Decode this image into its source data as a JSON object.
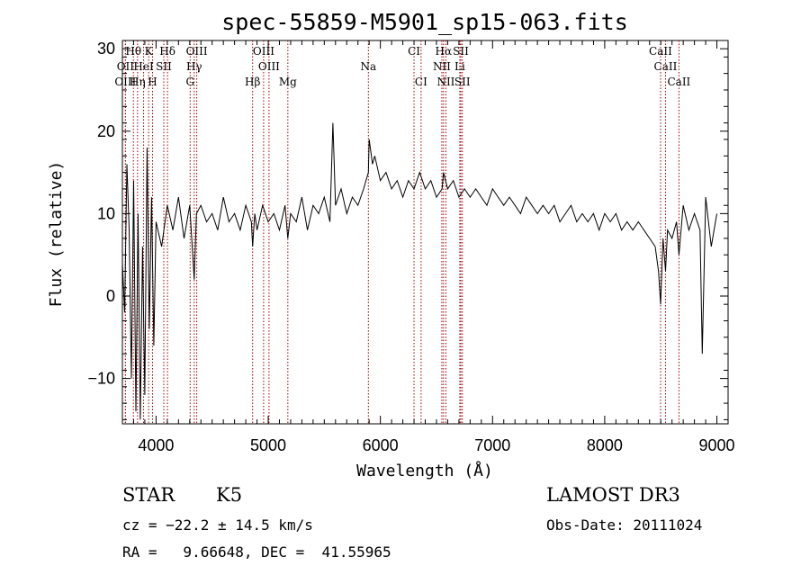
{
  "chart_data": {
    "type": "line",
    "title": "spec-55859-M5901_sp15-063.fits",
    "xlabel": "Wavelength (Å)",
    "ylabel": "Flux (relative)",
    "xlim": [
      3700,
      9100
    ],
    "ylim": [
      -15.5,
      31
    ],
    "xticks": [
      4000,
      5000,
      6000,
      7000,
      8000,
      9000
    ],
    "yticks": [
      -10,
      0,
      10,
      20,
      30
    ],
    "series": [
      {
        "name": "spectrum",
        "x": [
          3700,
          3720,
          3740,
          3760,
          3780,
          3800,
          3820,
          3840,
          3860,
          3880,
          3900,
          3920,
          3940,
          3960,
          3980,
          4000,
          4050,
          4100,
          4150,
          4200,
          4250,
          4300,
          4340,
          4360,
          4400,
          4450,
          4500,
          4550,
          4600,
          4650,
          4700,
          4750,
          4800,
          4850,
          4861,
          4880,
          4900,
          4950,
          5000,
          5050,
          5100,
          5150,
          5175,
          5200,
          5250,
          5300,
          5350,
          5400,
          5450,
          5500,
          5550,
          5577,
          5600,
          5650,
          5700,
          5750,
          5800,
          5850,
          5893,
          5900,
          5930,
          5950,
          6000,
          6050,
          6100,
          6150,
          6200,
          6250,
          6300,
          6350,
          6400,
          6450,
          6500,
          6550,
          6563,
          6600,
          6650,
          6700,
          6750,
          6800,
          6850,
          6900,
          6950,
          7000,
          7050,
          7100,
          7150,
          7200,
          7250,
          7300,
          7350,
          7400,
          7450,
          7500,
          7550,
          7600,
          7650,
          7700,
          7750,
          7800,
          7850,
          7900,
          7950,
          8000,
          8050,
          8100,
          8150,
          8200,
          8250,
          8300,
          8350,
          8400,
          8450,
          8480,
          8498,
          8520,
          8542,
          8560,
          8600,
          8640,
          8662,
          8700,
          8750,
          8800,
          8850,
          8870,
          8900,
          8950,
          9000
        ],
        "values": [
          4,
          -2,
          16,
          8,
          -10,
          14,
          -14,
          10,
          -15,
          6,
          -12,
          18,
          -4,
          12,
          -6,
          9,
          6,
          11,
          8,
          12,
          7,
          11,
          2,
          10,
          11,
          9,
          10,
          8,
          12,
          9,
          10,
          8,
          11,
          9,
          6,
          10,
          8,
          11,
          9,
          10,
          8,
          11,
          7,
          10,
          9,
          12,
          8,
          11,
          10,
          12,
          9,
          21,
          11,
          13,
          10,
          12,
          11,
          13,
          15,
          19,
          16,
          17,
          14,
          15,
          13,
          14,
          12,
          14,
          13,
          15,
          13,
          14,
          12,
          13,
          15,
          13,
          14,
          12,
          13,
          12,
          13,
          12,
          11,
          13,
          12,
          11,
          12,
          11,
          10,
          12,
          11,
          10,
          11,
          10,
          11,
          9,
          10,
          11,
          9,
          10,
          9,
          10,
          8,
          10,
          9,
          10,
          8,
          9,
          8,
          9,
          8,
          7,
          6,
          3,
          -1,
          7,
          3,
          8,
          7,
          9,
          5,
          11,
          8,
          10,
          8,
          -7,
          12,
          6,
          10
        ]
      }
    ],
    "spectral_lines": [
      {
        "label": "Hθ",
        "wl": 3798,
        "row": 0
      },
      {
        "label": "K",
        "wl": 3934,
        "row": 0
      },
      {
        "label": "Hδ",
        "wl": 4102,
        "row": 0
      },
      {
        "label": "OIII",
        "wl": 4363,
        "row": 0
      },
      {
        "label": "OIII",
        "wl": 4959,
        "row": 0
      },
      {
        "label": "CI",
        "wl": 6300,
        "row": 0
      },
      {
        "label": "Hα",
        "wl": 6563,
        "row": 0
      },
      {
        "label": "SII",
        "wl": 6717,
        "row": 0
      },
      {
        "label": "CaII",
        "wl": 8498,
        "row": 0
      },
      {
        "label": "OII",
        "wl": 3727,
        "row": 1
      },
      {
        "label": "HeI",
        "wl": 3889,
        "row": 1
      },
      {
        "label": "SII",
        "wl": 4069,
        "row": 1
      },
      {
        "label": "Hγ",
        "wl": 4340,
        "row": 1
      },
      {
        "label": "OIII",
        "wl": 5007,
        "row": 1
      },
      {
        "label": "Na",
        "wl": 5893,
        "row": 1
      },
      {
        "label": "NII",
        "wl": 6548,
        "row": 1
      },
      {
        "label": "Li",
        "wl": 6708,
        "row": 1
      },
      {
        "label": "CaII",
        "wl": 8542,
        "row": 1
      },
      {
        "label": "OIII",
        "wl": 3727,
        "row": 2
      },
      {
        "label": "Hη",
        "wl": 3835,
        "row": 2
      },
      {
        "label": "H",
        "wl": 3969,
        "row": 2
      },
      {
        "label": "G",
        "wl": 4304,
        "row": 2
      },
      {
        "label": "Hβ",
        "wl": 4861,
        "row": 2
      },
      {
        "label": "Mg",
        "wl": 5175,
        "row": 2
      },
      {
        "label": "CI",
        "wl": 6363,
        "row": 2
      },
      {
        "label": "NII",
        "wl": 6584,
        "row": 2
      },
      {
        "label": "SII",
        "wl": 6731,
        "row": 2
      },
      {
        "label": "CaII",
        "wl": 8662,
        "row": 2
      }
    ],
    "line_color": "#a00000"
  },
  "info": {
    "object_class": "STAR",
    "subclass": "K5",
    "survey": "LAMOST DR3",
    "redshift": "cz = −22.2 ± 14.5 km/s",
    "obs_date": "Obs-Date: 20111024",
    "coords": "RA =   9.66648, DEC =  41.55965"
  }
}
